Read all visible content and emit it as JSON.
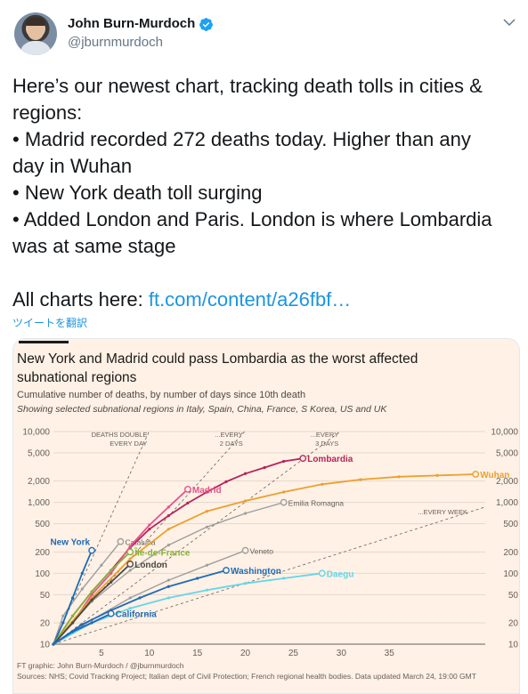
{
  "tweet": {
    "author_name": "John Burn-Murdoch",
    "handle": "@jburnmurdoch",
    "lines": [
      "Here’s our newest chart, tracking death tolls in cities &",
      "regions:",
      "• Madrid recorded 272 deaths today. Higher than any",
      "day in Wuhan",
      "• New York death toll surging",
      "• Added London and Paris. London is where Lombardia",
      "was at same stage"
    ],
    "charts_prefix": "All charts here: ",
    "link_text": "ft.com/content/a26fbf…",
    "translate_label": "ツイートを翻訳"
  },
  "icons": {
    "verified": "verified-badge-icon",
    "menu": "chevron-down-icon"
  },
  "colors": {
    "link": "#1b95e0",
    "ft_background": "#fff1e5"
  },
  "card": {
    "title_line1": "New York and Madrid could pass Lombardia as the worst affected",
    "title_line2": "subnational regions",
    "subtitle": "Cumulative number of deaths, by number of days since 10th death",
    "subtitle2": "Showing selected subnational regions in Italy, Spain, China, France, S Korea, US and UK",
    "footer_credit": "FT graphic: John Burn-Murdoch / @jburnmurdoch",
    "footer_sources": "Sources: NHS; Covid Tracking Project; Italian dept of Civil Protection; French regional health bodies. Data updated March 24, 19:00 GMT"
  },
  "chart_data": {
    "type": "line",
    "xlabel": "Number of days since 10th death",
    "ylabel": "",
    "xlim": [
      0,
      45
    ],
    "ylim": [
      10,
      10000
    ],
    "y_scale": "log",
    "x_ticks": [
      5,
      10,
      15,
      20,
      25,
      30,
      35
    ],
    "y_ticks": [
      10,
      20,
      50,
      100,
      200,
      500,
      1000,
      2000,
      5000,
      10000
    ],
    "y_tick_labels": [
      "10",
      "20",
      "50",
      "100",
      "200",
      "500",
      "1,000",
      "2,000",
      "5,000",
      "10,000"
    ],
    "reference_lines": [
      {
        "label": "DEATHS DOUBLE EVERY DAY",
        "label_line1": "DEATHS DOUBLE",
        "label_line2": "EVERY DAY",
        "doubling_days": 1
      },
      {
        "label": "EVERY 2 DAYS",
        "label_line1": "...EVERY",
        "label_line2": "2 DAYS",
        "doubling_days": 2
      },
      {
        "label": "EVERY 3 DAYS",
        "label_line1": "...EVERY",
        "label_line2": "3 DAYS",
        "doubling_days": 3
      },
      {
        "label": "EVERY WEEK",
        "label_line1": "...EVERY WEEK",
        "label_line2": "",
        "doubling_days": 7
      }
    ],
    "series": [
      {
        "name": "Lombardia",
        "color": "#b5255c",
        "highlight": true,
        "x": [
          0,
          2,
          4,
          6,
          8,
          10,
          12,
          14,
          16,
          18,
          20,
          22,
          24,
          26
        ],
        "y": [
          10,
          25,
          55,
          110,
          230,
          420,
          650,
          980,
          1400,
          1960,
          2550,
          3100,
          3800,
          4180
        ]
      },
      {
        "name": "Madrid",
        "color": "#e5538c",
        "highlight": true,
        "x": [
          0,
          2,
          4,
          6,
          8,
          10,
          12,
          14
        ],
        "y": [
          10,
          20,
          50,
          100,
          240,
          480,
          860,
          1535
        ]
      },
      {
        "name": "Wuhan",
        "color": "#eba02f",
        "highlight": true,
        "x": [
          0,
          4,
          8,
          12,
          16,
          20,
          24,
          28,
          32,
          36,
          40,
          44
        ],
        "y": [
          10,
          45,
          160,
          420,
          750,
          1050,
          1400,
          1800,
          2100,
          2300,
          2400,
          2500
        ]
      },
      {
        "name": "New York",
        "color": "#1e6bb8",
        "highlight": true,
        "x": [
          0,
          1,
          2,
          3,
          4
        ],
        "y": [
          10,
          20,
          45,
          100,
          210
        ]
      },
      {
        "name": "Île-de-France",
        "color": "#86b33b",
        "highlight": true,
        "x": [
          0,
          2,
          4,
          6,
          8
        ],
        "y": [
          10,
          25,
          55,
          110,
          200
        ]
      },
      {
        "name": "London",
        "color": "#4d4845",
        "highlight": true,
        "x": [
          0,
          2,
          4,
          6,
          8
        ],
        "y": [
          10,
          20,
          42,
          75,
          135
        ]
      },
      {
        "name": "Washington",
        "color": "#1e6bb8",
        "highlight": true,
        "x": [
          0,
          3,
          6,
          9,
          12,
          15,
          18
        ],
        "y": [
          10,
          19,
          30,
          45,
          65,
          85,
          110
        ]
      },
      {
        "name": "Emilia Romagna",
        "color": "#9e9e9e",
        "highlight": false,
        "x": [
          0,
          4,
          8,
          12,
          16,
          20,
          24
        ],
        "y": [
          10,
          40,
          110,
          250,
          450,
          700,
          1000
        ]
      },
      {
        "name": "Veneto",
        "color": "#9e9e9e",
        "highlight": false,
        "x": [
          0,
          4,
          8,
          12,
          16,
          20
        ],
        "y": [
          10,
          22,
          45,
          80,
          130,
          210
        ]
      },
      {
        "name": "Cataluña",
        "color": "#9e9e9e",
        "highlight": false,
        "x": [
          0,
          1,
          3,
          5,
          7
        ],
        "y": [
          10,
          25,
          60,
          130,
          280
        ]
      },
      {
        "name": "Daegu",
        "color": "#63d6e9",
        "highlight": true,
        "x": [
          0,
          4,
          8,
          12,
          16,
          20,
          24,
          28
        ],
        "y": [
          10,
          20,
          32,
          45,
          58,
          72,
          85,
          100
        ]
      },
      {
        "name": "California",
        "color": "#1e6bb8",
        "highlight": true,
        "x": [
          0,
          2,
          4,
          6
        ],
        "y": [
          10,
          15,
          20,
          27
        ]
      }
    ]
  }
}
